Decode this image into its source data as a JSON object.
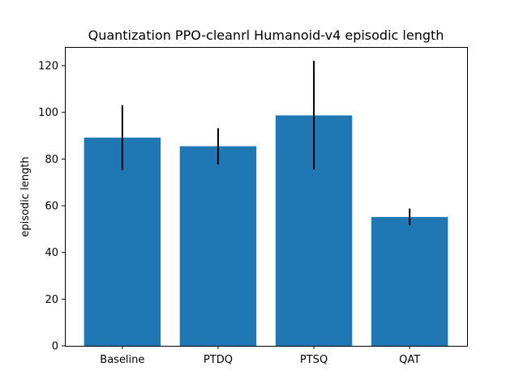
{
  "chart_data": {
    "type": "bar",
    "title": "Quantization PPO-cleanrl Humanoid-v4 episodic length",
    "xlabel": "",
    "ylabel": "episodic length",
    "categories": [
      "Baseline",
      "PTDQ",
      "PTSQ",
      "QAT"
    ],
    "values": [
      89.2,
      85.5,
      98.7,
      55.2
    ],
    "errors": [
      [
        75.3,
        103.1
      ],
      [
        77.7,
        93.2
      ],
      [
        75.5,
        122.1
      ],
      [
        51.6,
        58.8
      ]
    ],
    "ylim": [
      0,
      128
    ],
    "yticks": [
      0,
      20,
      40,
      60,
      80,
      100,
      120
    ],
    "bar_color": "#1f77b4",
    "error_color": "#000000",
    "grid": false,
    "legend": "none"
  }
}
